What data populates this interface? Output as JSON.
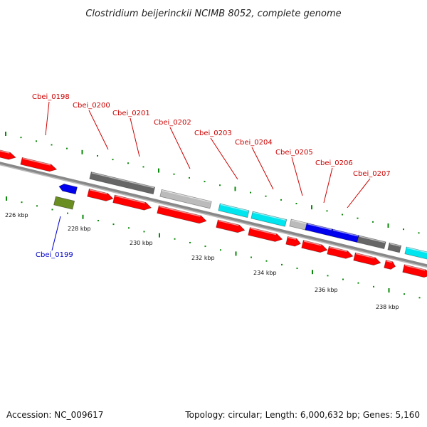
{
  "title": "Clostridium beijerinckii NCIMB 8052, complete genome",
  "footer": {
    "accession": "Accession: NC_009617",
    "summary": "Topology: circular; Length: 6,000,632 bp; Genes: 5,160"
  },
  "colors": {
    "forward_label": "#cc0000",
    "reverse_label": "#0000cc",
    "tick": "#0a8a0a",
    "backbone": "#888888",
    "cds": "#ff0000",
    "grey_dark": "#666666",
    "grey_light": "#bbbbbb",
    "cyan": "#00e5ee",
    "blue": "#0000ee",
    "olive": "#6b8e23"
  },
  "axis_labels": [
    {
      "text": "226 kbp",
      "kbp": 226
    },
    {
      "text": "228 kbp",
      "kbp": 228
    },
    {
      "text": "230 kbp",
      "kbp": 230
    },
    {
      "text": "232 kbp",
      "kbp": 232
    },
    {
      "text": "234 kbp",
      "kbp": 234
    },
    {
      "text": "236 kbp",
      "kbp": 236
    },
    {
      "text": "238 kbp",
      "kbp": 238
    }
  ],
  "gene_labels": [
    {
      "text": "Cbei_0198",
      "strand": "forward"
    },
    {
      "text": "Cbei_0199",
      "strand": "reverse"
    },
    {
      "text": "Cbei_0200",
      "strand": "forward"
    },
    {
      "text": "Cbei_0201",
      "strand": "forward"
    },
    {
      "text": "Cbei_0202",
      "strand": "forward"
    },
    {
      "text": "Cbei_0203",
      "strand": "forward"
    },
    {
      "text": "Cbei_0204",
      "strand": "forward"
    },
    {
      "text": "Cbei_0205",
      "strand": "forward"
    },
    {
      "text": "Cbei_0206",
      "strand": "forward"
    },
    {
      "text": "Cbei_0207",
      "strand": "forward"
    }
  ]
}
